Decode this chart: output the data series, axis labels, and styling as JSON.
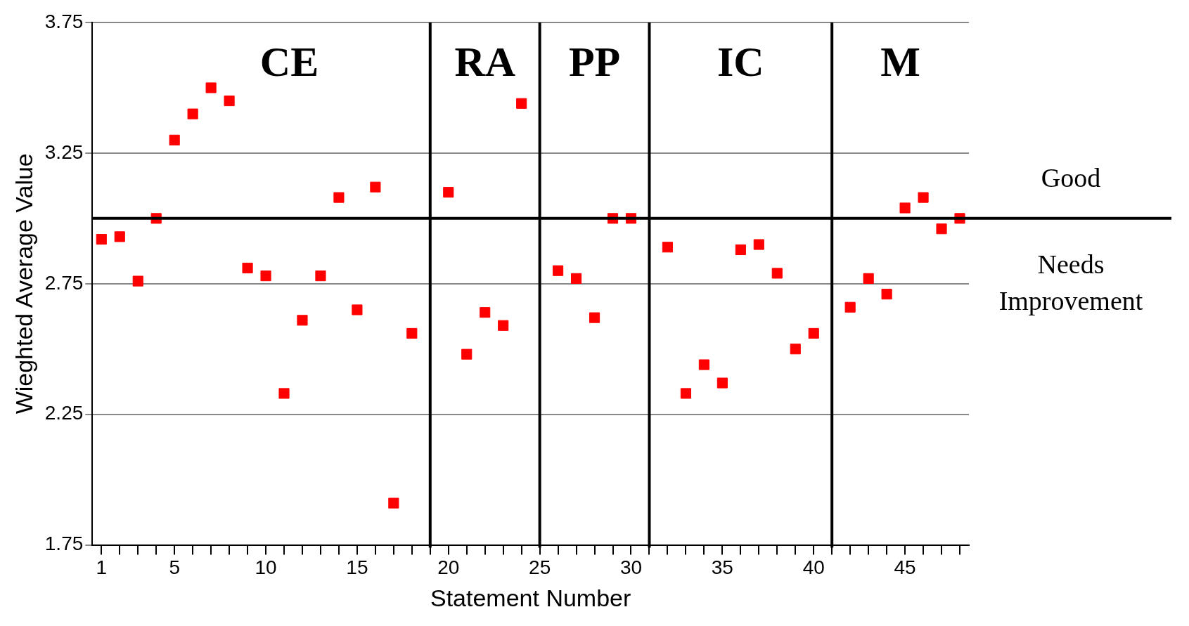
{
  "chart_data": {
    "type": "scatter",
    "xlabel": "Statement Number",
    "ylabel": "Wieghted Average Value",
    "x": [
      1,
      2,
      3,
      4,
      5,
      6,
      7,
      8,
      9,
      10,
      11,
      12,
      13,
      14,
      15,
      16,
      17,
      18,
      20,
      21,
      22,
      23,
      24,
      26,
      27,
      28,
      29,
      30,
      32,
      33,
      34,
      35,
      36,
      37,
      38,
      39,
      40,
      42,
      43,
      44,
      45,
      46,
      47,
      48
    ],
    "series": [
      {
        "color": "#ff0000",
        "values": [
          2.92,
          2.93,
          2.76,
          3.0,
          3.3,
          3.4,
          3.5,
          3.45,
          2.81,
          2.78,
          2.33,
          2.61,
          2.78,
          3.08,
          2.65,
          3.12,
          1.91,
          2.56,
          3.1,
          2.48,
          2.64,
          2.59,
          3.44,
          2.8,
          2.77,
          2.62,
          3.0,
          3.0,
          2.89,
          2.33,
          2.44,
          2.37,
          2.88,
          2.9,
          2.79,
          2.5,
          2.56,
          2.66,
          2.77,
          2.71,
          3.04,
          3.08,
          2.96,
          3.0
        ]
      }
    ],
    "marker": "square",
    "xlim": [
      0.5,
      48.5
    ],
    "xticks": [
      1,
      {
        "value": 2,
        "label": null
      },
      {
        "value": 3,
        "label": null
      },
      {
        "value": 4,
        "label": null
      },
      5,
      {
        "value": 6,
        "label": null
      },
      {
        "value": 7,
        "label": null
      },
      {
        "value": 8,
        "label": null
      },
      {
        "value": 9,
        "label": null
      },
      10,
      {
        "value": 11,
        "label": null
      },
      {
        "value": 12,
        "label": null
      },
      {
        "value": 13,
        "label": null
      },
      {
        "value": 14,
        "label": null
      },
      15,
      {
        "value": 16,
        "label": null
      },
      {
        "value": 17,
        "label": null
      },
      {
        "value": 18,
        "label": null
      },
      {
        "value": 19,
        "label": null
      },
      20,
      {
        "value": 21,
        "label": null
      },
      {
        "value": 22,
        "label": null
      },
      {
        "value": 23,
        "label": null
      },
      {
        "value": 24,
        "label": null
      },
      25,
      {
        "value": 26,
        "label": null
      },
      {
        "value": 27,
        "label": null
      },
      {
        "value": 28,
        "label": null
      },
      {
        "value": 29,
        "label": null
      },
      30,
      {
        "value": 31,
        "label": null
      },
      {
        "value": 32,
        "label": null
      },
      {
        "value": 33,
        "label": null
      },
      {
        "value": 34,
        "label": null
      },
      35,
      {
        "value": 36,
        "label": null
      },
      {
        "value": 37,
        "label": null
      },
      {
        "value": 38,
        "label": null
      },
      {
        "value": 39,
        "label": null
      },
      40,
      {
        "value": 41,
        "label": null
      },
      {
        "value": 42,
        "label": null
      },
      {
        "value": 43,
        "label": null
      },
      {
        "value": 44,
        "label": null
      },
      45,
      {
        "value": 46,
        "label": null
      },
      {
        "value": 47,
        "label": null
      },
      {
        "value": 48,
        "label": null
      }
    ],
    "ylim": [
      1.75,
      3.75
    ],
    "yticks": [
      1.75,
      2.25,
      2.75,
      3.25,
      3.75
    ],
    "grid": "y",
    "legend": false,
    "ref_lines": [
      {
        "axis": "y",
        "value": 3.0,
        "color": "#000000"
      },
      {
        "axis": "x",
        "value": 19,
        "color": "#000000"
      },
      {
        "axis": "x",
        "value": 25,
        "color": "#000000"
      },
      {
        "axis": "x",
        "value": 31,
        "color": "#000000"
      },
      {
        "axis": "x",
        "value": 41,
        "color": "#000000"
      }
    ],
    "annotations": [
      "CE",
      "RA",
      "PP",
      "IC",
      "M",
      "Good",
      "Needs Improvement"
    ]
  }
}
